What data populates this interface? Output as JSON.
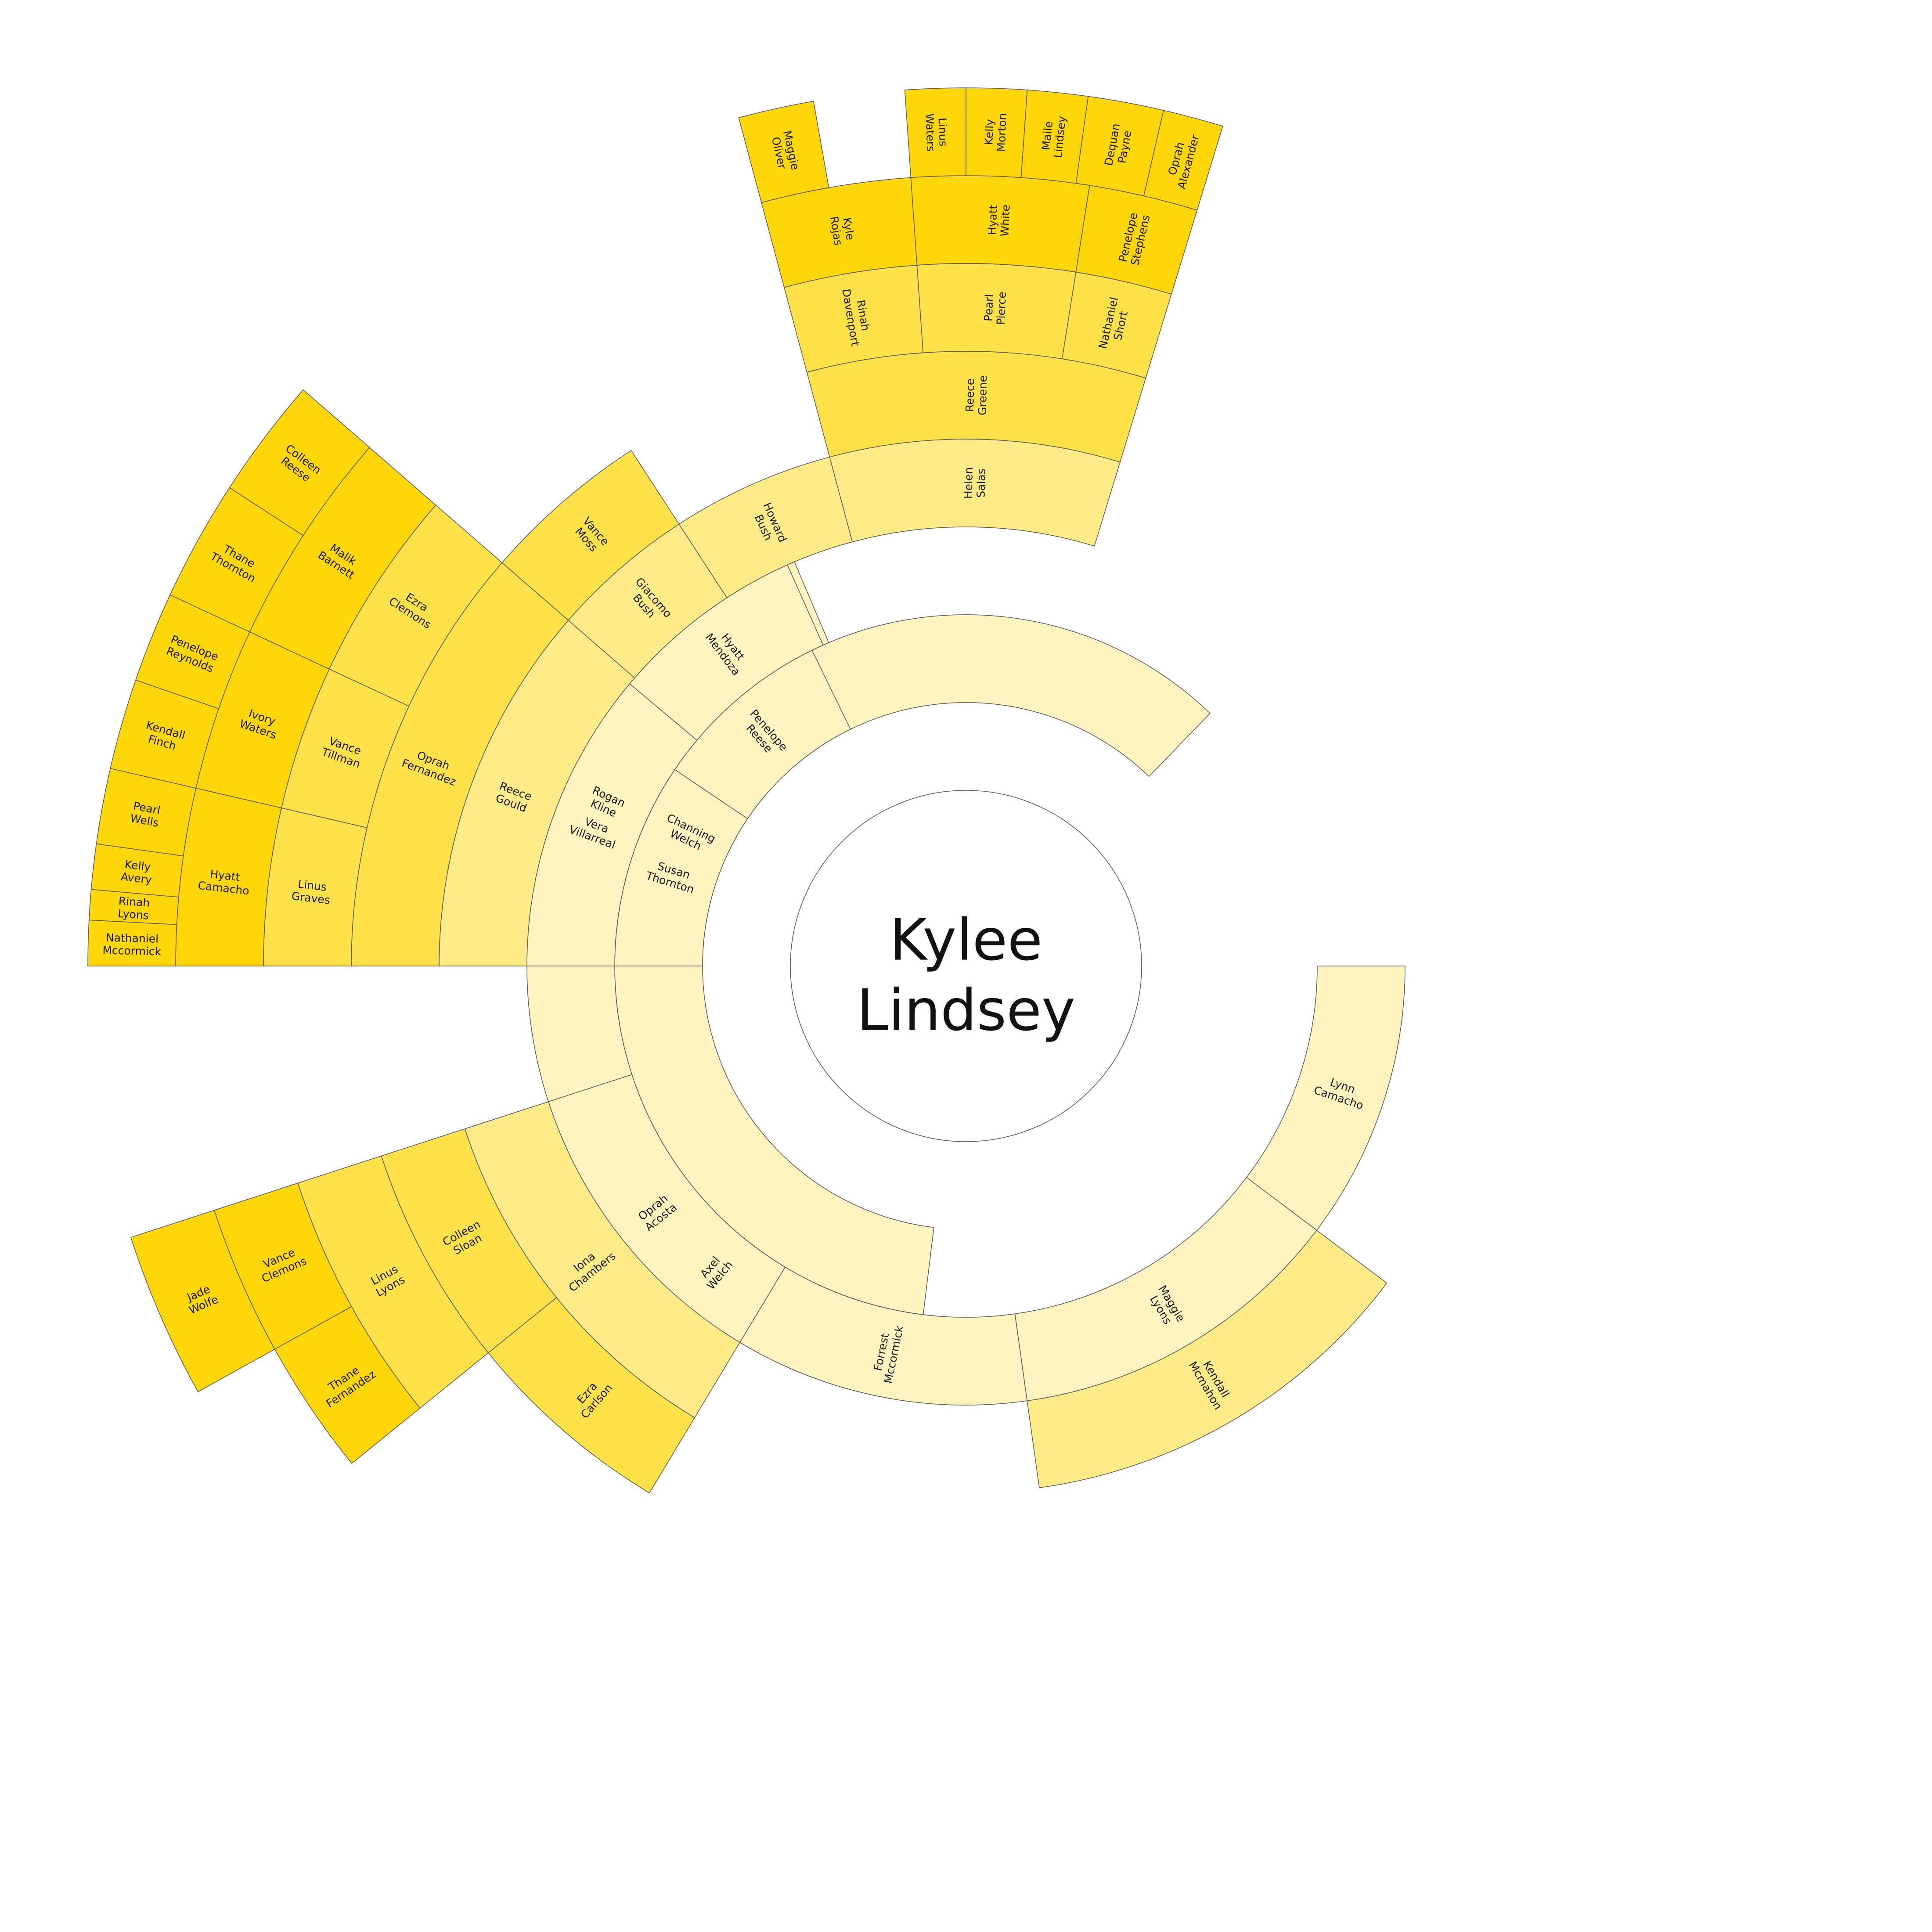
{
  "root": {
    "first": "Kylee",
    "last": "Lindsey"
  },
  "colors": {
    "gen1": "#fff3bf",
    "gen2": "#fff3bf",
    "gen3": "#ffeb88",
    "gen4": "#ffe14a",
    "gen5": "#ffd60a",
    "stroke": "#5a5a5a",
    "background": "#ffffff"
  },
  "chart_data": {
    "type": "sunburst",
    "ancestors": [
      {
        "id": "channing-welch",
        "name": "Channing Welch",
        "gen": 1,
        "start": 97,
        "end": 314,
        "parent": null
      },
      {
        "id": "susan-thornton",
        "name": "Susan Thornton",
        "gen": 1,
        "start": 180,
        "end": 214,
        "parent": null
      },
      {
        "id": "penelope-reese",
        "name": "Penelope Reese",
        "gen": 1,
        "start": 214,
        "end": 244,
        "parent": null
      },
      {
        "id": "axel-welch",
        "name": "Axel Welch",
        "gen": 2,
        "start": 97,
        "end": 162,
        "parent": "channing-welch"
      },
      {
        "id": "rogan-kline",
        "name": "Rogan Kline",
        "gen": 2,
        "start": 162,
        "end": 247,
        "parent": "channing-welch"
      },
      {
        "id": "lynn-camacho",
        "name": "Lynn Camacho",
        "gen": 2,
        "start": 0,
        "end": 37,
        "parent": "channing-welch"
      },
      {
        "id": "maggie-lyons",
        "name": "Maggie Lyons",
        "gen": 2,
        "start": 37,
        "end": 82,
        "parent": "channing-welch"
      },
      {
        "id": "forrest-mccormick",
        "name": "Forrest Mccormick",
        "gen": 2,
        "start": 82,
        "end": 121,
        "parent": "channing-welch"
      },
      {
        "id": "oprah-acosta",
        "name": "Oprah Acosta",
        "gen": 2,
        "start": 121,
        "end": 162,
        "parent": "channing-welch"
      },
      {
        "id": "vera-villarreal",
        "name": "Vera Villarreal",
        "gen": 2,
        "start": 180,
        "end": 220,
        "parent": "susan-thornton"
      },
      {
        "id": "hyatt-mendoza",
        "name": "Hyatt Mendoza",
        "gen": 2,
        "start": 220,
        "end": 246,
        "parent": "penelope-reese"
      },
      {
        "id": "kendall-mcmahon",
        "name": "Kendall Mcmahon",
        "gen": 3,
        "start": 37,
        "end": 82,
        "parent": "maggie-lyons"
      },
      {
        "id": "iona-chambers",
        "name": "Iona Chambers",
        "gen": 3,
        "start": 121,
        "end": 162,
        "parent": "oprah-acosta"
      },
      {
        "id": "reece-gould",
        "name": "Reece Gould",
        "gen": 3,
        "start": 180,
        "end": 221,
        "parent": "vera-villarreal"
      },
      {
        "id": "giacomo-bush",
        "name": "Giacomo Bush",
        "gen": 3,
        "start": 221,
        "end": 237,
        "parent": "vera-villarreal"
      },
      {
        "id": "howard-bush",
        "name": "Howard Bush",
        "gen": 3,
        "start": 237,
        "end": 255,
        "parent": "hyatt-mendoza"
      },
      {
        "id": "helen-salas",
        "name": "Helen Salas",
        "gen": 3,
        "start": 255,
        "end": 287,
        "parent": "hyatt-mendoza"
      },
      {
        "id": "colleen-sloan",
        "name": "Colleen Sloan",
        "gen": 4,
        "start": 141,
        "end": 162,
        "parent": "iona-chambers"
      },
      {
        "id": "ezra-carlson",
        "name": "Ezra Carlson",
        "gen": 4,
        "start": 121,
        "end": 141,
        "parent": "iona-chambers"
      },
      {
        "id": "oprah-fernandez",
        "name": "Oprah Fernandez",
        "gen": 4,
        "start": 180,
        "end": 221,
        "parent": "reece-gould"
      },
      {
        "id": "vance-moss",
        "name": "Vance Moss",
        "gen": 4,
        "start": 221,
        "end": 237,
        "parent": "giacomo-bush"
      },
      {
        "id": "reece-greene",
        "name": "Reece Greene",
        "gen": 4,
        "start": 255,
        "end": 287,
        "parent": "helen-salas"
      },
      {
        "id": "linus-lyons",
        "name": "Linus Lyons",
        "gen": 5,
        "start": 141,
        "end": 162,
        "parent": "colleen-sloan"
      },
      {
        "id": "ezra-clemons",
        "name": "Ezra Clemons",
        "gen": 5,
        "start": 205,
        "end": 221,
        "parent": "oprah-fernandez"
      },
      {
        "id": "vance-tillman",
        "name": "Vance Tillman",
        "gen": 5,
        "start": 193,
        "end": 205,
        "parent": "oprah-fernandez"
      },
      {
        "id": "linus-graves",
        "name": "Linus Graves",
        "gen": 5,
        "start": 180,
        "end": 193,
        "parent": "oprah-fernandez"
      },
      {
        "id": "rinah-davenport",
        "name": "Rinah Davenport",
        "gen": 5,
        "start": 255,
        "end": 266,
        "parent": "reece-greene"
      },
      {
        "id": "pearl-pierce",
        "name": "Pearl Pierce",
        "gen": 5,
        "start": 266,
        "end": 279,
        "parent": "reece-greene"
      },
      {
        "id": "nathaniel-short",
        "name": "Nathaniel Short",
        "gen": 5,
        "start": 279,
        "end": 287,
        "parent": "reece-greene"
      },
      {
        "id": "thane-fernandez",
        "name": "Thane Fernandez",
        "gen": 6,
        "start": 141,
        "end": 151,
        "parent": "linus-lyons"
      },
      {
        "id": "vance-clemons",
        "name": "Vance Clemons",
        "gen": 6,
        "start": 151,
        "end": 162,
        "parent": "linus-lyons"
      },
      {
        "id": "malik-barnett",
        "name": "Malik Barnett",
        "gen": 6,
        "start": 205,
        "end": 221,
        "parent": "ezra-clemons"
      },
      {
        "id": "ivory-waters",
        "name": "Ivory Waters",
        "gen": 6,
        "start": 193,
        "end": 205,
        "parent": "vance-tillman"
      },
      {
        "id": "hyatt-camacho",
        "name": "Hyatt Camacho",
        "gen": 6,
        "start": 180,
        "end": 193,
        "parent": "linus-graves"
      },
      {
        "id": "kyle-rojas",
        "name": "Kyle Rojas",
        "gen": 6,
        "start": 255,
        "end": 266,
        "parent": "rinah-davenport"
      },
      {
        "id": "hyatt-white",
        "name": "Hyatt White",
        "gen": 6,
        "start": 266,
        "end": 279,
        "parent": "pearl-pierce"
      },
      {
        "id": "penelope-stephens",
        "name": "Penelope Stephens",
        "gen": 6,
        "start": 279,
        "end": 287,
        "parent": "nathaniel-short"
      },
      {
        "id": "jade-wolfe",
        "name": "Jade Wolfe",
        "gen": 7,
        "start": 151,
        "end": 162,
        "parent": "vance-clemons"
      },
      {
        "id": "colleen-reese",
        "name": "Colleen Reese",
        "gen": 7,
        "start": 213,
        "end": 221,
        "parent": "malik-barnett"
      },
      {
        "id": "thane-thornton",
        "name": "Thane Thornton",
        "gen": 7,
        "start": 205,
        "end": 213,
        "parent": "malik-barnett"
      },
      {
        "id": "penelope-reynolds",
        "name": "Penelope Reynolds",
        "gen": 7,
        "start": 199,
        "end": 205,
        "parent": "ivory-waters"
      },
      {
        "id": "kendall-finch",
        "name": "Kendall Finch",
        "gen": 7,
        "start": 193,
        "end": 199,
        "parent": "ivory-waters"
      },
      {
        "id": "pearl-wells",
        "name": "Pearl Wells",
        "gen": 7,
        "start": 188,
        "end": 193,
        "parent": "hyatt-camacho"
      },
      {
        "id": "kelly-avery",
        "name": "Kelly Avery",
        "gen": 7,
        "start": 185,
        "end": 188,
        "parent": "hyatt-camacho"
      },
      {
        "id": "rinah-lyons",
        "name": "Rinah Lyons",
        "gen": 7,
        "start": 183,
        "end": 185,
        "parent": "hyatt-camacho"
      },
      {
        "id": "nathaniel-mccormick",
        "name": "Nathaniel Mccormick",
        "gen": 7,
        "start": 180,
        "end": 183,
        "parent": "hyatt-camacho"
      },
      {
        "id": "maggie-oliver",
        "name": "Maggie Oliver",
        "gen": 7,
        "start": 255,
        "end": 260,
        "parent": "kyle-rojas"
      },
      {
        "id": "linus-waters",
        "name": "Linus Waters",
        "gen": 7,
        "start": 266,
        "end": 270,
        "parent": "hyatt-white"
      },
      {
        "id": "kelly-morton",
        "name": "Kelly Morton",
        "gen": 7,
        "start": 270,
        "end": 274,
        "parent": "hyatt-white"
      },
      {
        "id": "maile-lindsey",
        "name": "Maile Lindsey",
        "gen": 7,
        "start": 274,
        "end": 278,
        "parent": "hyatt-white"
      },
      {
        "id": "dequan-payne",
        "name": "Dequan Payne",
        "gen": 7,
        "start": 278,
        "end": 283,
        "parent": "penelope-stephens"
      },
      {
        "id": "oprah-alexander",
        "name": "Oprah Alexander",
        "gen": 7,
        "start": 283,
        "end": 287,
        "parent": "penelope-stephens"
      }
    ]
  }
}
